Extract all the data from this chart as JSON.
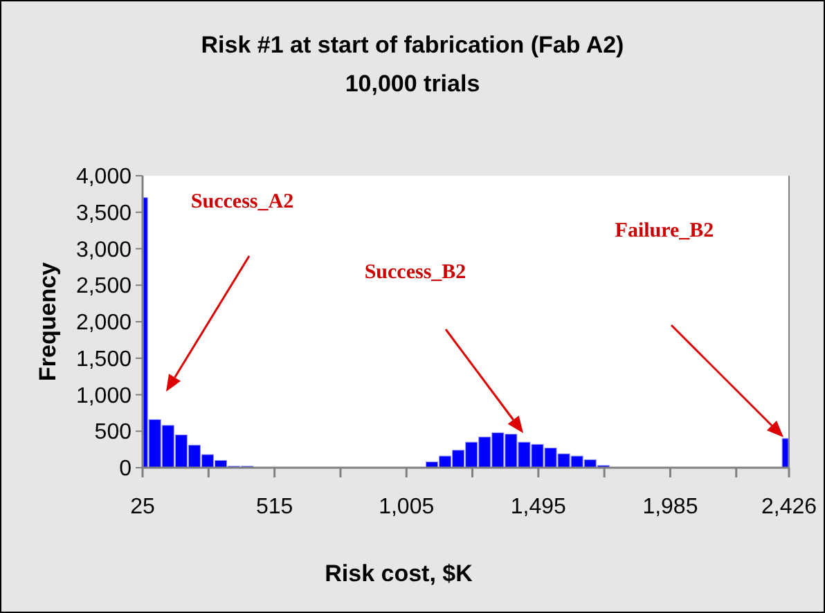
{
  "chart_data": {
    "type": "histogram",
    "title": "Risk #1 at start of fabrication (Fab A2)",
    "subtitle": "10,000 trials",
    "xlabel": "Risk cost, $K",
    "ylabel": "Frequency",
    "bins": [
      25,
      46,
      95,
      144,
      193,
      242,
      291,
      340,
      389,
      438,
      1075,
      1124,
      1173,
      1222,
      1271,
      1320,
      1369,
      1418,
      1467,
      1516,
      1565,
      1614,
      1663,
      1712,
      1761,
      2398,
      2426
    ],
    "values": [
      3700,
      660,
      580,
      450,
      310,
      180,
      100,
      20,
      20,
      0,
      80,
      160,
      240,
      350,
      420,
      480,
      460,
      350,
      320,
      270,
      190,
      160,
      110,
      30,
      0,
      400
    ],
    "color": "#0000ff",
    "xlim": [
      25,
      2426
    ],
    "xticks": [
      25,
      {
        "value": 270,
        "label": null
      },
      {
        "value": 515,
        "label": "515"
      },
      {
        "value": 760,
        "label": null
      },
      {
        "value": 1005,
        "label": "1,005"
      },
      {
        "value": 1250,
        "label": null
      },
      {
        "value": 1495,
        "label": "1,495"
      },
      {
        "value": 1740,
        "label": null
      },
      {
        "value": 1985,
        "label": "1,985"
      },
      {
        "value": 2230,
        "label": null
      },
      {
        "value": 2426,
        "label": "2,426"
      }
    ],
    "ylim": [
      0,
      4000
    ],
    "yticks": [
      0,
      500,
      {
        "value": 1000,
        "label": "1,000"
      },
      {
        "value": 1500,
        "label": "1,500"
      },
      {
        "value": 2000,
        "label": "2,000"
      },
      {
        "value": 2500,
        "label": "2,500"
      },
      {
        "value": 3000,
        "label": "3,000"
      },
      {
        "value": 3500,
        "label": "3,500"
      },
      {
        "value": 4000,
        "label": "4,000"
      }
    ],
    "annotations": [
      "Success_A2",
      "Success_B2",
      "Failure_B2"
    ],
    "grid": false
  }
}
